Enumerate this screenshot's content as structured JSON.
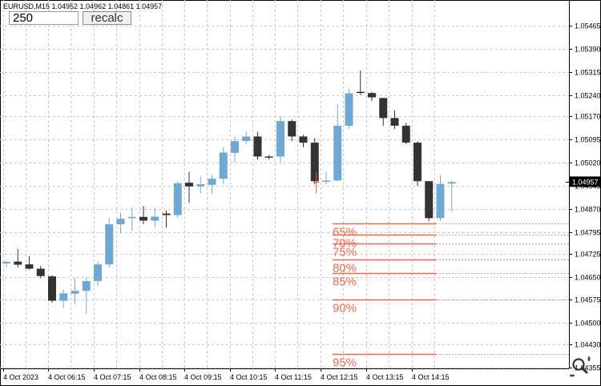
{
  "header": {
    "symbol_info": "EURUSD,M15  1.04952 1.04962 1.04861 1.04957"
  },
  "controls": {
    "period_value": "250",
    "recalc_label": "recalc"
  },
  "colors": {
    "bull": "#6fa8d3",
    "bear": "#333333",
    "fib": "#f0694d",
    "grid": "#c8c8c8",
    "axis": "#000000",
    "current_price_bg": "#000000",
    "current_price_text": "#ffffff"
  },
  "icons": {
    "zoom": "magnifier-zoom-icon"
  },
  "chart_data": {
    "type": "candlestick",
    "symbol": "EURUSD",
    "timeframe": "M15",
    "ylim": [
      1.04355,
      1.05535
    ],
    "price_ticks": [
      "1.05465",
      "1.05390",
      "1.05315",
      "1.05240",
      "1.05170",
      "1.05095",
      "1.05020",
      "1.04945",
      "1.04870",
      "1.04795",
      "1.04725",
      "1.04650",
      "1.04575",
      "1.04500",
      "1.04430",
      "1.04355"
    ],
    "time_labels": [
      "4 Oct 2023",
      "4 Oct 06:15",
      "4 Oct 07:15",
      "4 Oct 08:15",
      "4 Oct 09:15",
      "4 Oct 10:15",
      "4 Oct 11:15",
      "4 Oct 12:15",
      "4 Oct 13:15",
      "4 Oct 14:15"
    ],
    "current_price": "1.04957",
    "candles": [
      {
        "o": 1.04693,
        "h": 1.04702,
        "l": 1.04681,
        "c": 1.04698
      },
      {
        "o": 1.04699,
        "h": 1.0474,
        "l": 1.0468,
        "c": 1.04689
      },
      {
        "o": 1.0469,
        "h": 1.04717,
        "l": 1.04673,
        "c": 1.04676
      },
      {
        "o": 1.04676,
        "h": 1.04685,
        "l": 1.04645,
        "c": 1.04652
      },
      {
        "o": 1.04651,
        "h": 1.04655,
        "l": 1.04565,
        "c": 1.04572
      },
      {
        "o": 1.04572,
        "h": 1.04608,
        "l": 1.04547,
        "c": 1.04596
      },
      {
        "o": 1.04595,
        "h": 1.04647,
        "l": 1.0456,
        "c": 1.04604
      },
      {
        "o": 1.04604,
        "h": 1.04648,
        "l": 1.0453,
        "c": 1.04636
      },
      {
        "o": 1.04636,
        "h": 1.047,
        "l": 1.0462,
        "c": 1.0469
      },
      {
        "o": 1.0469,
        "h": 1.0484,
        "l": 1.0468,
        "c": 1.0482
      },
      {
        "o": 1.0482,
        "h": 1.04858,
        "l": 1.0479,
        "c": 1.04838
      },
      {
        "o": 1.0484,
        "h": 1.04875,
        "l": 1.048,
        "c": 1.04844
      },
      {
        "o": 1.04844,
        "h": 1.0488,
        "l": 1.0482,
        "c": 1.04832
      },
      {
        "o": 1.04832,
        "h": 1.04875,
        "l": 1.0481,
        "c": 1.04845
      },
      {
        "o": 1.04855,
        "h": 1.04865,
        "l": 1.0481,
        "c": 1.0485
      },
      {
        "o": 1.0485,
        "h": 1.0496,
        "l": 1.0484,
        "c": 1.04953
      },
      {
        "o": 1.04955,
        "h": 1.0499,
        "l": 1.0489,
        "c": 1.04943
      },
      {
        "o": 1.04943,
        "h": 1.04975,
        "l": 1.0492,
        "c": 1.0495
      },
      {
        "o": 1.04948,
        "h": 1.0498,
        "l": 1.0492,
        "c": 1.04968
      },
      {
        "o": 1.04968,
        "h": 1.0507,
        "l": 1.0495,
        "c": 1.05053
      },
      {
        "o": 1.05052,
        "h": 1.05105,
        "l": 1.0502,
        "c": 1.0509
      },
      {
        "o": 1.0509,
        "h": 1.0512,
        "l": 1.0508,
        "c": 1.05105
      },
      {
        "o": 1.05105,
        "h": 1.0512,
        "l": 1.0503,
        "c": 1.0504
      },
      {
        "o": 1.0504,
        "h": 1.05045,
        "l": 1.0503,
        "c": 1.05038
      },
      {
        "o": 1.0504,
        "h": 1.0517,
        "l": 1.0502,
        "c": 1.05155
      },
      {
        "o": 1.05155,
        "h": 1.0516,
        "l": 1.0509,
        "c": 1.05105
      },
      {
        "o": 1.05105,
        "h": 1.0511,
        "l": 1.0507,
        "c": 1.05085
      },
      {
        "o": 1.05085,
        "h": 1.051,
        "l": 1.0495,
        "c": 1.0496
      },
      {
        "o": 1.0496,
        "h": 1.0499,
        "l": 1.0495,
        "c": 1.04962
      },
      {
        "o": 1.04962,
        "h": 1.0521,
        "l": 1.0496,
        "c": 1.0514
      },
      {
        "o": 1.0514,
        "h": 1.0526,
        "l": 1.0513,
        "c": 1.05245
      },
      {
        "o": 1.0525,
        "h": 1.0532,
        "l": 1.0524,
        "c": 1.05246
      },
      {
        "o": 1.05246,
        "h": 1.0525,
        "l": 1.0522,
        "c": 1.05232
      },
      {
        "o": 1.0523,
        "h": 1.0523,
        "l": 1.0514,
        "c": 1.05165
      },
      {
        "o": 1.05165,
        "h": 1.0519,
        "l": 1.0513,
        "c": 1.0514
      },
      {
        "o": 1.0514,
        "h": 1.0515,
        "l": 1.0508,
        "c": 1.05085
      },
      {
        "o": 1.05085,
        "h": 1.0509,
        "l": 1.04945,
        "c": 1.0496
      },
      {
        "o": 1.0496,
        "h": 1.0496,
        "l": 1.0483,
        "c": 1.0484
      },
      {
        "o": 1.0484,
        "h": 1.0498,
        "l": 1.0483,
        "c": 1.04951
      },
      {
        "o": 1.04952,
        "h": 1.04962,
        "l": 1.04861,
        "c": 1.04957
      }
    ],
    "fib_levels": [
      {
        "label": "65%",
        "price": 1.04822
      },
      {
        "label": "70%",
        "price": 1.04787
      },
      {
        "label": "75%",
        "price": 1.04757
      },
      {
        "label": "80%",
        "price": 1.04707
      },
      {
        "label": "85%",
        "price": 1.04662
      },
      {
        "label": "90%",
        "price": 1.04575
      },
      {
        "label": "95%",
        "price": 1.044
      }
    ]
  }
}
